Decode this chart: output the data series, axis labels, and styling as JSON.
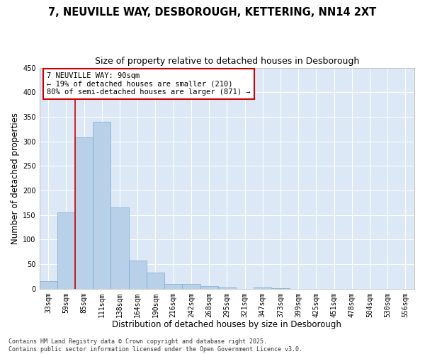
{
  "title_line1": "7, NEUVILLE WAY, DESBOROUGH, KETTERING, NN14 2XT",
  "title_line2": "Size of property relative to detached houses in Desborough",
  "xlabel": "Distribution of detached houses by size in Desborough",
  "ylabel": "Number of detached properties",
  "bar_color": "#b8d0e8",
  "bar_edge_color": "#7aaace",
  "background_color": "#dce8f5",
  "grid_color": "#ffffff",
  "categories": [
    "33sqm",
    "59sqm",
    "85sqm",
    "111sqm",
    "138sqm",
    "164sqm",
    "190sqm",
    "216sqm",
    "242sqm",
    "268sqm",
    "295sqm",
    "321sqm",
    "347sqm",
    "373sqm",
    "399sqm",
    "425sqm",
    "451sqm",
    "478sqm",
    "504sqm",
    "530sqm",
    "556sqm"
  ],
  "values": [
    15,
    155,
    308,
    340,
    165,
    57,
    33,
    10,
    10,
    5,
    2,
    0,
    2,
    1,
    0,
    0,
    0,
    0,
    0,
    0,
    0
  ],
  "ylim": [
    0,
    450
  ],
  "yticks": [
    0,
    50,
    100,
    150,
    200,
    250,
    300,
    350,
    400,
    450
  ],
  "annotation_box_text": "7 NEUVILLE WAY: 90sqm\n← 19% of detached houses are smaller (210)\n80% of semi-detached houses are larger (871) →",
  "vline_x_index": 2,
  "vline_color": "#cc0000",
  "footer_line1": "Contains HM Land Registry data © Crown copyright and database right 2025.",
  "footer_line2": "Contains public sector information licensed under the Open Government Licence v3.0.",
  "title_fontsize": 10.5,
  "subtitle_fontsize": 9,
  "axis_label_fontsize": 8.5,
  "tick_fontsize": 7,
  "annotation_fontsize": 7.5,
  "footer_fontsize": 6
}
